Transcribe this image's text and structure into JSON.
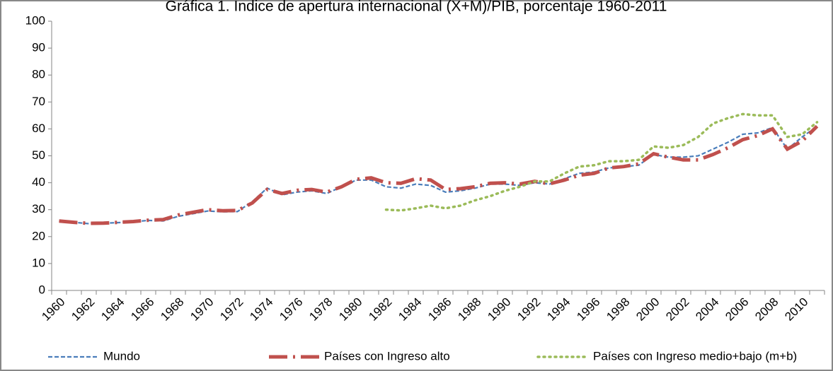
{
  "chart_data": {
    "type": "line",
    "title": "Gráfica 1. Índice de apertura internacional (X+M)/PIB, porcentaje 1960-2011",
    "categories": [
      "1960",
      null,
      "1962",
      null,
      "1964",
      null,
      "1966",
      null,
      "1968",
      null,
      "1970",
      null,
      "1972",
      null,
      "1974",
      null,
      "1976",
      null,
      "1978",
      null,
      "1980",
      null,
      "1982",
      null,
      "1984",
      null,
      "1986",
      null,
      "1988",
      null,
      "1990",
      null,
      "1992",
      null,
      "1994",
      null,
      "1996",
      null,
      "1998",
      null,
      "2000",
      null,
      "2002",
      null,
      "2004",
      null,
      "2006",
      null,
      "2008",
      null,
      "2010",
      null
    ],
    "series": [
      {
        "name": "Mundo",
        "color": "#4a7ebb",
        "values": [
          25.8,
          25.3,
          24.8,
          25.0,
          25.2,
          25.5,
          26.0,
          25.8,
          27.5,
          28.5,
          29.5,
          29.2,
          29.3,
          33,
          38,
          35.5,
          36.5,
          37,
          36,
          38.5,
          41,
          41,
          38.5,
          38,
          39.5,
          39,
          36.5,
          37,
          38,
          39.5,
          39.5,
          39,
          40,
          39.5,
          41.5,
          43.5,
          44,
          45.5,
          46,
          46.5,
          50.5,
          49.5,
          49.5,
          50,
          52.5,
          55,
          58,
          58.5,
          60.5,
          52.5,
          57,
          61
        ]
      },
      {
        "name": "Países con Ingreso alto",
        "color": "#c0504d",
        "values": [
          25.8,
          25.3,
          24.9,
          25.0,
          25.3,
          25.6,
          26.1,
          26.3,
          28,
          29,
          30,
          29.6,
          29.7,
          32.5,
          37.5,
          36,
          37.2,
          37.5,
          36.5,
          38.5,
          41.3,
          41.8,
          40,
          39.8,
          41.5,
          41,
          37.5,
          37.8,
          38.5,
          39.8,
          40,
          39.5,
          40.5,
          39.6,
          41,
          42.8,
          43.5,
          45.5,
          46,
          47,
          50.8,
          49.5,
          48.5,
          48.5,
          50.5,
          53,
          56,
          57.5,
          60,
          52.5,
          55.5,
          61
        ]
      },
      {
        "name": "Países con Ingreso medio+bajo (m+b)",
        "color": "#9bbb59",
        "values": [
          null,
          null,
          null,
          null,
          null,
          null,
          null,
          null,
          null,
          null,
          null,
          null,
          null,
          null,
          null,
          null,
          null,
          null,
          null,
          null,
          null,
          null,
          30,
          29.7,
          30.5,
          31.5,
          30.5,
          31.5,
          33.5,
          35,
          37,
          38.5,
          40.5,
          40.5,
          43.5,
          46,
          46.5,
          48,
          48,
          48.5,
          53.5,
          53,
          54,
          57,
          62,
          64,
          65.5,
          65,
          65,
          57,
          58,
          62.5
        ]
      }
    ],
    "ylim": [
      0,
      100
    ],
    "yticks": [
      0,
      10,
      20,
      30,
      40,
      50,
      60,
      70,
      80,
      90,
      100
    ],
    "legend": "bottom"
  }
}
